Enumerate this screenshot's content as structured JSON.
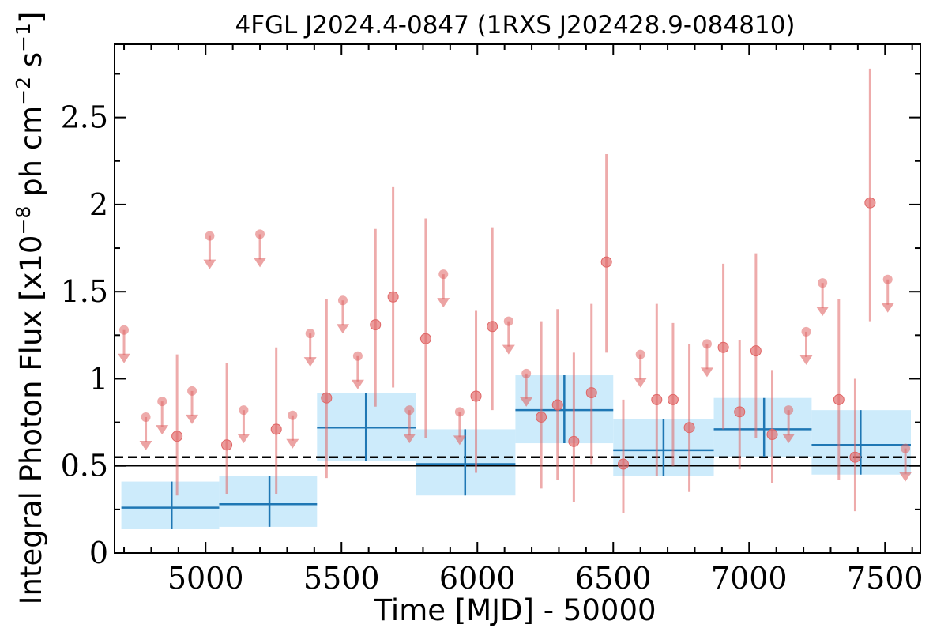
{
  "chart_data": {
    "type": "scatter",
    "title": "4FGL J2024.4-0847 (1RXS J202428.9-084810)",
    "xlabel": "Time [MJD] - 50000",
    "ylabel": "Integral Photon Flux [x10",
    "ylabel_exp1": "−8",
    "ylabel_mid": " ph cm",
    "ylabel_exp2": "−2",
    "ylabel_mid2": " s",
    "ylabel_exp3": "−1",
    "ylabel_end": "]",
    "xlim": [
      4665,
      7630
    ],
    "ylim": [
      0,
      2.92
    ],
    "xticks": [
      5000,
      5500,
      6000,
      6500,
      7000,
      7500
    ],
    "xtick_labels": [
      "5000",
      "5500",
      "6000",
      "6500",
      "7000",
      "7500"
    ],
    "yticks": [
      0,
      0.5,
      1,
      1.5,
      2,
      2.5
    ],
    "ytick_labels": [
      "0",
      "0.5",
      "1",
      "1.5",
      "2",
      "2.5"
    ],
    "average_flux": 0.55,
    "reference_flux": 0.5,
    "colors": {
      "monthly": "#e06666",
      "yearly": "#1f77b4",
      "band": "#cdebfb"
    },
    "monthly_detections": [
      {
        "x": 4895,
        "y": 0.67,
        "lo": 0.33,
        "hi": 1.14
      },
      {
        "x": 5078,
        "y": 0.62,
        "lo": 0.34,
        "hi": 1.09
      },
      {
        "x": 5260,
        "y": 0.71,
        "lo": 0.34,
        "hi": 1.18
      },
      {
        "x": 5445,
        "y": 0.89,
        "lo": 0.43,
        "hi": 1.46
      },
      {
        "x": 5625,
        "y": 1.31,
        "lo": 0.84,
        "hi": 1.86
      },
      {
        "x": 5690,
        "y": 1.47,
        "lo": 0.95,
        "hi": 2.1
      },
      {
        "x": 5810,
        "y": 1.23,
        "lo": 0.66,
        "hi": 1.92
      },
      {
        "x": 5995,
        "y": 0.9,
        "lo": 0.46,
        "hi": 1.39
      },
      {
        "x": 6055,
        "y": 1.3,
        "lo": 0.82,
        "hi": 1.87
      },
      {
        "x": 6235,
        "y": 0.78,
        "lo": 0.37,
        "hi": 1.33
      },
      {
        "x": 6295,
        "y": 0.85,
        "lo": 0.42,
        "hi": 1.4
      },
      {
        "x": 6355,
        "y": 0.64,
        "lo": 0.29,
        "hi": 1.15
      },
      {
        "x": 6420,
        "y": 0.92,
        "lo": 0.51,
        "hi": 1.43
      },
      {
        "x": 6475,
        "y": 1.67,
        "lo": 1.15,
        "hi": 2.29
      },
      {
        "x": 6537,
        "y": 0.51,
        "lo": 0.23,
        "hi": 0.88
      },
      {
        "x": 6660,
        "y": 0.88,
        "lo": 0.44,
        "hi": 1.43
      },
      {
        "x": 6720,
        "y": 0.88,
        "lo": 0.5,
        "hi": 1.32
      },
      {
        "x": 6780,
        "y": 0.72,
        "lo": 0.35,
        "hi": 1.2
      },
      {
        "x": 6905,
        "y": 1.18,
        "lo": 0.71,
        "hi": 1.66
      },
      {
        "x": 6965,
        "y": 0.81,
        "lo": 0.48,
        "hi": 1.22
      },
      {
        "x": 7025,
        "y": 1.16,
        "lo": 0.66,
        "hi": 1.72
      },
      {
        "x": 7085,
        "y": 0.68,
        "lo": 0.4,
        "hi": 1.05
      },
      {
        "x": 7330,
        "y": 0.88,
        "lo": 0.42,
        "hi": 1.46
      },
      {
        "x": 7390,
        "y": 0.55,
        "lo": 0.24,
        "hi": 1.0
      },
      {
        "x": 7445,
        "y": 2.01,
        "lo": 1.33,
        "hi": 2.78
      }
    ],
    "monthly_upper_limits": [
      {
        "x": 4700,
        "y": 1.28
      },
      {
        "x": 4780,
        "y": 0.78
      },
      {
        "x": 4840,
        "y": 0.87
      },
      {
        "x": 4950,
        "y": 0.93
      },
      {
        "x": 5015,
        "y": 1.82
      },
      {
        "x": 5140,
        "y": 0.82
      },
      {
        "x": 5200,
        "y": 1.83
      },
      {
        "x": 5320,
        "y": 0.79
      },
      {
        "x": 5385,
        "y": 1.26
      },
      {
        "x": 5505,
        "y": 1.45
      },
      {
        "x": 5560,
        "y": 1.13
      },
      {
        "x": 5750,
        "y": 0.82
      },
      {
        "x": 5875,
        "y": 1.6
      },
      {
        "x": 5935,
        "y": 0.81
      },
      {
        "x": 6115,
        "y": 1.33
      },
      {
        "x": 6180,
        "y": 1.03
      },
      {
        "x": 6600,
        "y": 1.14
      },
      {
        "x": 6845,
        "y": 1.2
      },
      {
        "x": 7145,
        "y": 0.82
      },
      {
        "x": 7210,
        "y": 1.27
      },
      {
        "x": 7270,
        "y": 1.55
      },
      {
        "x": 7510,
        "y": 1.57
      },
      {
        "x": 7575,
        "y": 0.6
      }
    ],
    "yearly_bins": [
      {
        "x0": 4690,
        "x1": 5050,
        "xc": 4875,
        "y": 0.26,
        "lo": 0.14,
        "hi": 0.41
      },
      {
        "x0": 5050,
        "x1": 5410,
        "xc": 5235,
        "y": 0.28,
        "lo": 0.15,
        "hi": 0.44
      },
      {
        "x0": 5410,
        "x1": 5775,
        "xc": 5590,
        "y": 0.72,
        "lo": 0.53,
        "hi": 0.92
      },
      {
        "x0": 5775,
        "x1": 6140,
        "xc": 5955,
        "y": 0.51,
        "lo": 0.33,
        "hi": 0.71
      },
      {
        "x0": 6140,
        "x1": 6500,
        "xc": 6320,
        "y": 0.82,
        "lo": 0.63,
        "hi": 1.02
      },
      {
        "x0": 6500,
        "x1": 6870,
        "xc": 6685,
        "y": 0.59,
        "lo": 0.44,
        "hi": 0.77
      },
      {
        "x0": 6870,
        "x1": 7230,
        "xc": 7055,
        "y": 0.71,
        "lo": 0.55,
        "hi": 0.89
      },
      {
        "x0": 7230,
        "x1": 7595,
        "xc": 7410,
        "y": 0.62,
        "lo": 0.45,
        "hi": 0.82
      }
    ]
  }
}
